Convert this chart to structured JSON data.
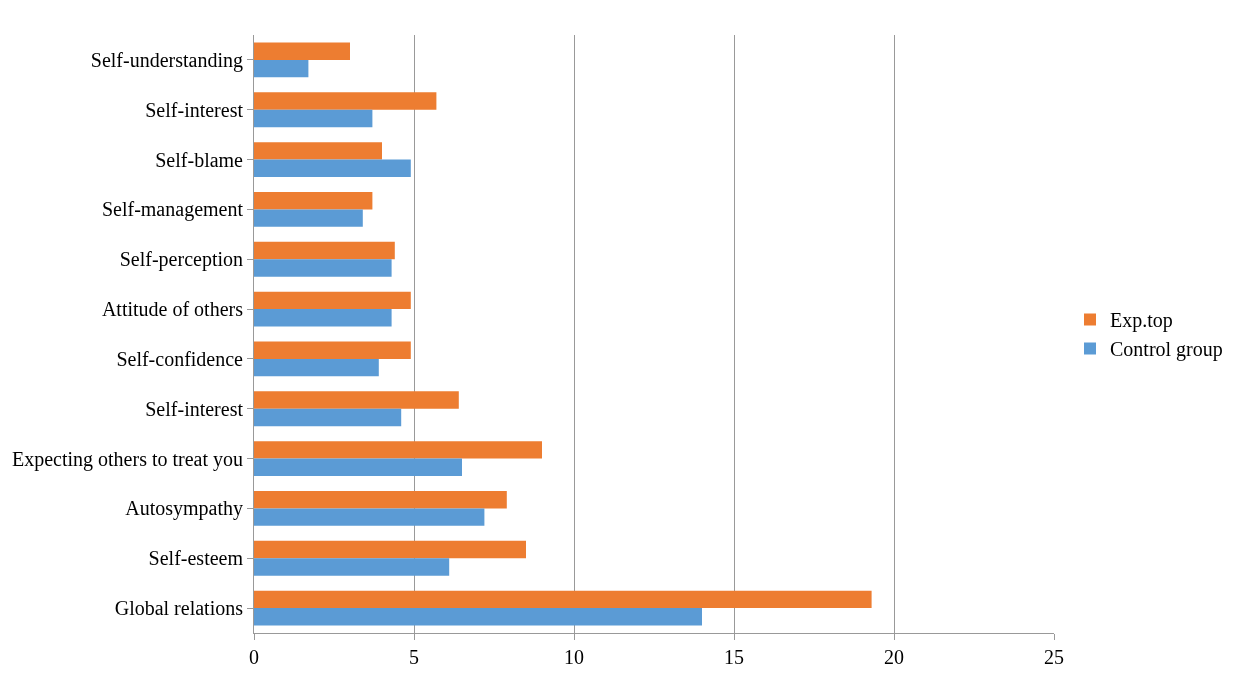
{
  "chart_data": {
    "type": "bar",
    "orientation": "horizontal",
    "categories": [
      "Self-understanding",
      "Self-interest",
      "Self-blame",
      "Self-management",
      "Self-perception",
      "Attitude of others",
      "Self-confidence",
      "Self-interest",
      "Expecting others to treat you",
      "Autosympathy",
      "Self-esteem",
      "Global relations"
    ],
    "series": [
      {
        "name": "Exp.top",
        "color": "#ed7d31",
        "values": [
          3.0,
          5.7,
          4.0,
          3.7,
          4.4,
          4.9,
          4.9,
          6.4,
          9.0,
          7.9,
          8.5,
          19.3
        ]
      },
      {
        "name": "Control group",
        "color": "#5b9bd5",
        "values": [
          1.7,
          3.7,
          4.9,
          3.4,
          4.3,
          4.3,
          3.9,
          4.6,
          6.5,
          7.2,
          6.1,
          14.0
        ]
      }
    ],
    "xlim": [
      0,
      25
    ],
    "xticks": [
      0,
      5,
      10,
      15,
      20,
      25
    ],
    "grid": "x",
    "legend": "right"
  }
}
